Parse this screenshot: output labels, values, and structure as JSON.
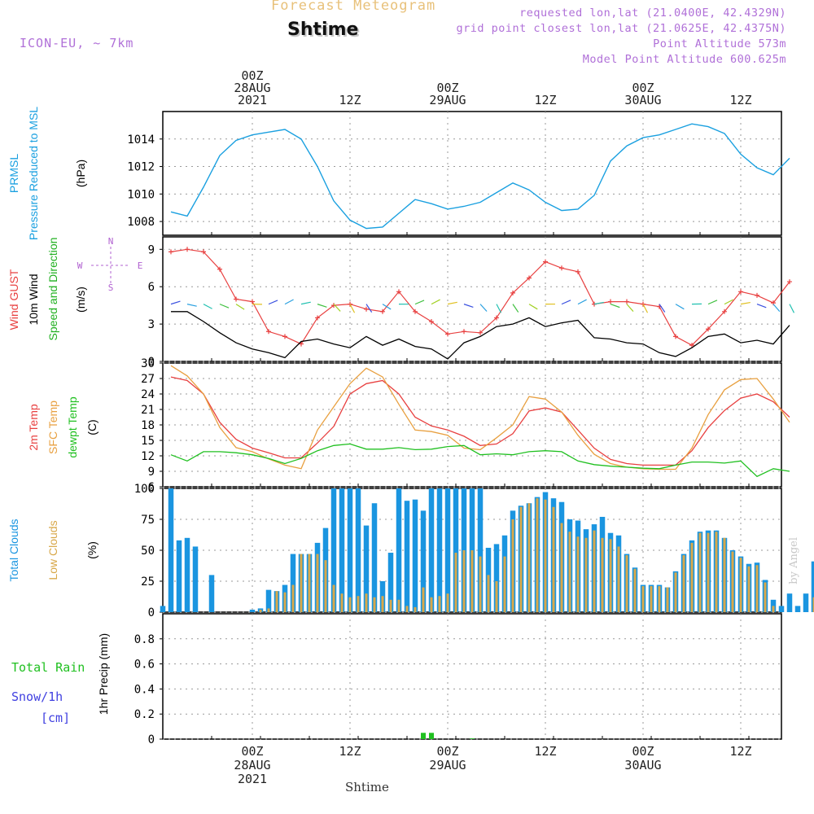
{
  "header": {
    "title": "Forecast Meteogram",
    "station": "Shtime",
    "model": "ICON-EU, ~ 7km",
    "requested": "requested lon,lat (21.0400E, 42.4329N)",
    "grid_point": "grid point closest lon,lat (21.0625E, 42.4375N)",
    "point_altitude": "Point Altitude 573m",
    "model_altitude": "Model Point Altitude 600.625m"
  },
  "footer": {
    "station_label": "Shtime",
    "credit": "by Angel"
  },
  "colors": {
    "pressure": "#1aa0e0",
    "gust": "#e84040",
    "wind": "#000000",
    "direction": "#20b020",
    "temp2m": "#e84040",
    "sfc_temp": "#e8a040",
    "dewpt": "#20c020",
    "total_cloud": "#1a95e0",
    "low_cloud": "#d8a84a",
    "rain": "#20c020",
    "snow": "#4040e0",
    "label_purple": "#b060d0",
    "grid": "#999999"
  },
  "chart_data": [
    {
      "type": "line",
      "id": "pressure",
      "ylabel_lines": [
        "PRMSL",
        "Pressure Reduced to MSL"
      ],
      "units": "(hPa)",
      "ylim": [
        1007,
        1016
      ],
      "yticks": [
        1008,
        1010,
        1012,
        1014
      ],
      "t": [
        -10,
        -8,
        -6,
        -4,
        -2,
        0,
        2,
        4,
        6,
        8,
        10,
        12,
        14,
        16,
        18,
        20,
        22,
        24,
        26,
        28,
        30,
        32,
        34,
        36,
        38,
        40,
        42,
        44,
        46,
        48,
        50,
        52,
        54,
        56,
        58,
        60,
        62,
        64,
        66
      ],
      "values": [
        1008.7,
        1008.4,
        1010.5,
        1012.8,
        1013.9,
        1014.3,
        1014.5,
        1014.7,
        1014.0,
        1012.0,
        1009.5,
        1008.1,
        1007.5,
        1007.6,
        1008.6,
        1009.6,
        1009.3,
        1008.9,
        1009.1,
        1009.4,
        1010.1,
        1010.8,
        1010.3,
        1009.4,
        1008.8,
        1008.9,
        1009.9,
        1012.4,
        1013.5,
        1014.1,
        1014.3,
        1014.7,
        1015.1,
        1014.9,
        1014.4,
        1012.9,
        1011.9,
        1011.4,
        1012.6
      ]
    },
    {
      "type": "line",
      "id": "wind",
      "ylabel_lines": [
        "Wind GUST",
        "10m Wind",
        "Speed and Direction"
      ],
      "units": "(m/s)",
      "compass": {
        "n": "N",
        "s": "S",
        "w": "W",
        "e": "E"
      },
      "ylim": [
        0,
        10
      ],
      "yticks": [
        0,
        3,
        6,
        9
      ],
      "series": [
        {
          "name": "Wind GUST",
          "t": [
            -10,
            -8,
            -6,
            -4,
            -2,
            0,
            2,
            4,
            6,
            8,
            10,
            12,
            14,
            16,
            18,
            20,
            22,
            24,
            26,
            28,
            30,
            32,
            34,
            36,
            38,
            40,
            42,
            44,
            46,
            48,
            50,
            52,
            54,
            56,
            58,
            60,
            62,
            64,
            66
          ],
          "values": [
            8.8,
            9.0,
            8.8,
            7.4,
            5.0,
            4.8,
            2.4,
            2.0,
            1.4,
            3.5,
            4.5,
            4.6,
            4.2,
            4.0,
            5.6,
            4.0,
            3.2,
            2.2,
            2.4,
            2.3,
            3.5,
            5.5,
            6.7,
            8.0,
            7.5,
            7.2,
            4.6,
            4.8,
            4.8,
            4.6,
            4.4,
            2.0,
            1.3,
            2.6,
            4.0,
            5.6,
            5.3,
            4.7,
            6.4
          ]
        },
        {
          "name": "10m Wind",
          "t": [
            -10,
            -8,
            -6,
            -4,
            -2,
            0,
            2,
            4,
            6,
            8,
            10,
            12,
            14,
            16,
            18,
            20,
            22,
            24,
            26,
            28,
            30,
            32,
            34,
            36,
            38,
            40,
            42,
            44,
            46,
            48,
            50,
            52,
            54,
            56,
            58,
            60,
            62,
            64,
            66
          ],
          "values": [
            4.0,
            4.0,
            3.2,
            2.3,
            1.5,
            1.0,
            0.7,
            0.3,
            1.6,
            1.8,
            1.4,
            1.1,
            2.0,
            1.3,
            1.8,
            1.2,
            1.0,
            0.2,
            1.5,
            2.0,
            2.8,
            3.0,
            3.5,
            2.8,
            3.1,
            3.3,
            1.9,
            1.8,
            1.5,
            1.4,
            0.7,
            0.4,
            1.1,
            2.0,
            2.2,
            1.5,
            1.7,
            1.4,
            2.9
          ]
        }
      ]
    },
    {
      "type": "line",
      "id": "temperature",
      "ylabel_lines": [
        "2m Temp",
        "SFC Temp",
        "dewpt Temp"
      ],
      "units": "(C)",
      "ylim": [
        6,
        30
      ],
      "yticks": [
        6,
        9,
        12,
        15,
        18,
        21,
        24,
        27,
        30
      ],
      "series": [
        {
          "name": "2m Temp",
          "t": [
            -10,
            -8,
            -6,
            -4,
            -2,
            0,
            2,
            4,
            6,
            8,
            10,
            12,
            14,
            16,
            18,
            20,
            22,
            24,
            26,
            28,
            30,
            32,
            34,
            36,
            38,
            40,
            42,
            44,
            46,
            48,
            50,
            52,
            54,
            56,
            58,
            60,
            62,
            64,
            66
          ],
          "values": [
            27.3,
            26.6,
            24.0,
            18.5,
            15.2,
            13.5,
            12.6,
            11.6,
            11.6,
            14.5,
            17.7,
            24.0,
            26.0,
            26.6,
            24.0,
            19.5,
            17.8,
            17.0,
            15.8,
            14.0,
            14.3,
            16.3,
            20.7,
            21.3,
            20.5,
            17.0,
            13.5,
            11.3,
            10.5,
            10.2,
            10.2,
            10.2,
            13.0,
            17.5,
            20.8,
            23.2,
            24.0,
            22.5,
            19.5
          ]
        },
        {
          "name": "SFC Temp",
          "t": [
            -10,
            -8,
            -6,
            -4,
            -2,
            0,
            2,
            4,
            6,
            8,
            10,
            12,
            14,
            16,
            18,
            20,
            22,
            24,
            26,
            28,
            30,
            32,
            34,
            36,
            38,
            40,
            42,
            44,
            46,
            48,
            50,
            52,
            54,
            56,
            58,
            60,
            62,
            64,
            66
          ],
          "values": [
            29.5,
            27.5,
            24.0,
            17.5,
            13.6,
            12.8,
            11.4,
            10.2,
            9.5,
            17.0,
            21.5,
            26.0,
            29.0,
            27.3,
            22.0,
            17.0,
            16.7,
            16.0,
            13.5,
            13.2,
            15.5,
            18.0,
            23.5,
            23.0,
            20.5,
            16.0,
            12.3,
            10.5,
            9.8,
            9.5,
            9.4,
            9.4,
            13.5,
            20.0,
            24.8,
            26.8,
            27.0,
            23.0,
            18.5
          ]
        },
        {
          "name": "dewpt Temp",
          "t": [
            -10,
            -8,
            -6,
            -4,
            -2,
            0,
            2,
            4,
            6,
            8,
            10,
            12,
            14,
            16,
            18,
            20,
            22,
            24,
            26,
            28,
            30,
            32,
            34,
            36,
            38,
            40,
            42,
            44,
            46,
            48,
            50,
            52,
            54,
            56,
            58,
            60,
            62,
            64,
            66
          ],
          "values": [
            12.2,
            11.0,
            12.8,
            12.8,
            12.6,
            12.2,
            11.5,
            10.5,
            11.5,
            13.0,
            14.0,
            14.3,
            13.3,
            13.3,
            13.6,
            13.2,
            13.3,
            13.8,
            14.0,
            12.2,
            12.4,
            12.2,
            12.8,
            13.0,
            12.8,
            11.0,
            10.3,
            10.0,
            9.8,
            9.6,
            9.5,
            10.2,
            10.8,
            10.8,
            10.6,
            11.0,
            8.0,
            9.5,
            9.0
          ]
        }
      ]
    },
    {
      "type": "bar",
      "id": "clouds",
      "ylabel_lines": [
        "Total Clouds",
        "Low Clouds"
      ],
      "units": "(%)",
      "ylim": [
        0,
        100
      ],
      "yticks": [
        0,
        25,
        50,
        75,
        100
      ],
      "t_start": -11,
      "t_step": 1,
      "series": [
        {
          "name": "Total Clouds",
          "values": [
            5,
            100,
            58,
            60,
            53,
            0,
            30,
            0,
            0,
            0,
            0,
            2,
            3,
            18,
            17,
            22,
            47,
            47,
            47,
            56,
            68,
            100,
            100,
            100,
            100,
            70,
            88,
            25,
            48,
            100,
            90,
            91,
            82,
            100,
            100,
            100,
            100,
            100,
            100,
            100,
            52,
            55,
            62,
            82,
            86,
            88,
            93,
            97,
            92,
            89,
            75,
            74,
            67,
            71,
            77,
            64,
            62,
            47,
            36,
            22,
            22,
            22,
            20,
            33,
            47,
            58,
            65,
            66,
            66,
            60,
            50,
            45,
            39,
            40,
            26,
            10,
            5,
            15,
            5,
            15,
            41
          ]
        },
        {
          "name": "Low Clouds",
          "values": [
            0,
            0,
            0,
            0,
            0,
            0,
            0,
            0,
            0,
            0,
            0,
            0,
            2,
            3,
            17,
            16,
            22,
            47,
            47,
            47,
            42,
            22,
            15,
            12,
            13,
            15,
            12,
            13,
            10,
            10,
            5,
            4,
            20,
            12,
            13,
            15,
            48,
            50,
            50,
            45,
            30,
            25,
            45,
            75,
            85,
            88,
            92,
            91,
            85,
            72,
            65,
            61,
            60,
            66,
            60,
            59,
            53,
            46,
            35,
            21,
            21,
            21,
            20,
            32,
            46,
            56,
            64,
            64,
            65,
            60,
            49,
            44,
            37,
            38,
            24,
            5,
            0,
            0,
            0,
            0,
            12
          ]
        }
      ]
    },
    {
      "type": "bar",
      "id": "precip",
      "ylabel_lines": [
        "Total Rain",
        "Snow/1h",
        "[cm]"
      ],
      "units": "1hr Precip (mm)",
      "ylim": [
        0,
        1
      ],
      "yticks": [
        0,
        0.2,
        0.4,
        0.6,
        0.8
      ],
      "series": [
        {
          "name": "Total Rain",
          "t": [
            21,
            22,
            27
          ],
          "values": [
            0.05,
            0.05,
            0.005
          ]
        },
        {
          "name": "Snow/1h",
          "t": [],
          "values": []
        }
      ]
    }
  ],
  "time_axis": {
    "major": [
      {
        "t": 0,
        "lines": [
          "00Z",
          "28AUG",
          "2021"
        ]
      },
      {
        "t": 12,
        "lines": [
          "12Z"
        ]
      },
      {
        "t": 24,
        "lines": [
          "00Z",
          "29AUG"
        ]
      },
      {
        "t": 36,
        "lines": [
          "12Z"
        ]
      },
      {
        "t": 48,
        "lines": [
          "00Z",
          "30AUG"
        ]
      },
      {
        "t": 60,
        "lines": [
          "12Z"
        ]
      }
    ],
    "range": [
      -11,
      65
    ]
  }
}
